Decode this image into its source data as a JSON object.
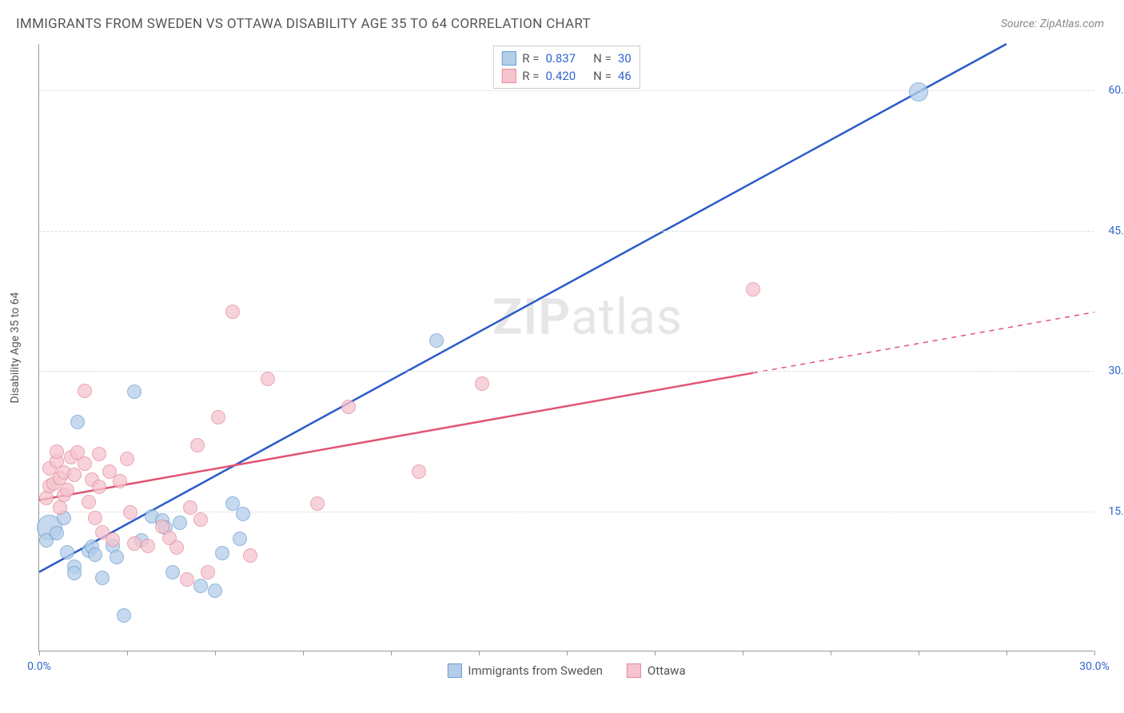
{
  "title": "IMMIGRANTS FROM SWEDEN VS OTTAWA DISABILITY AGE 35 TO 64 CORRELATION CHART",
  "source": "Source: ZipAtlas.com",
  "watermark": "ZIPatlas",
  "y_axis_title": "Disability Age 35 to 64",
  "chart": {
    "type": "scatter",
    "background_color": "#ffffff",
    "grid_color": "#dddddd",
    "axis_color": "#999999",
    "xlim": [
      0,
      30
    ],
    "ylim": [
      0,
      65
    ],
    "x_ticks": [
      0,
      2.5,
      5,
      7.5,
      10,
      12.5,
      15,
      17.5,
      20,
      22.5,
      25,
      27.5,
      30
    ],
    "x_tick_labels": {
      "0": "0.0%",
      "30": "30.0%"
    },
    "y_ticks": [
      15,
      30,
      45,
      60
    ],
    "y_tick_labels": {
      "15": "15.0%",
      "30": "30.0%",
      "45": "45.0%",
      "60": "60.0%"
    },
    "label_fontsize": 14,
    "label_color": "#3366cc",
    "title_fontsize": 17,
    "title_color": "#555555"
  },
  "series": [
    {
      "key": "sweden",
      "label": "Immigrants from Sweden",
      "fill": "#b3cdea",
      "stroke": "#6d9fd1",
      "line_color": "#2b5bc9",
      "line_width": 2.5,
      "line_dash": "none",
      "R_label": "R  =",
      "R": "0.837",
      "N_label": "N  =",
      "N": "30",
      "marker_radius": 9,
      "trend": {
        "x1": 0,
        "y1": 8.5,
        "x2": 27.5,
        "y2": 65
      },
      "points": [
        {
          "x": 0.3,
          "y": 13.2,
          "r": 16
        },
        {
          "x": 0.2,
          "y": 11.8
        },
        {
          "x": 0.5,
          "y": 12.6
        },
        {
          "x": 0.8,
          "y": 10.5
        },
        {
          "x": 1.0,
          "y": 9.0
        },
        {
          "x": 1.0,
          "y": 8.3
        },
        {
          "x": 1.4,
          "y": 10.7
        },
        {
          "x": 1.5,
          "y": 11.1
        },
        {
          "x": 0.7,
          "y": 14.2
        },
        {
          "x": 1.6,
          "y": 10.3
        },
        {
          "x": 1.8,
          "y": 7.8
        },
        {
          "x": 1.1,
          "y": 24.5
        },
        {
          "x": 2.1,
          "y": 11.2
        },
        {
          "x": 2.2,
          "y": 10.0
        },
        {
          "x": 2.4,
          "y": 3.8
        },
        {
          "x": 2.7,
          "y": 27.7
        },
        {
          "x": 2.9,
          "y": 11.8
        },
        {
          "x": 3.2,
          "y": 14.4
        },
        {
          "x": 3.5,
          "y": 13.9
        },
        {
          "x": 3.6,
          "y": 13.2
        },
        {
          "x": 3.8,
          "y": 8.4
        },
        {
          "x": 4.0,
          "y": 13.7
        },
        {
          "x": 4.6,
          "y": 6.9
        },
        {
          "x": 5.0,
          "y": 6.4
        },
        {
          "x": 5.2,
          "y": 10.4
        },
        {
          "x": 5.5,
          "y": 15.7
        },
        {
          "x": 5.8,
          "y": 14.6
        },
        {
          "x": 5.7,
          "y": 12.0
        },
        {
          "x": 11.3,
          "y": 33.2
        },
        {
          "x": 25.0,
          "y": 59.8,
          "r": 12
        }
      ]
    },
    {
      "key": "ottawa",
      "label": "Ottawa",
      "fill": "#f5c4ce",
      "stroke": "#e48a9c",
      "line_color": "#e15573",
      "line_width": 2.5,
      "line_dash": "none",
      "dash_extension": true,
      "R_label": "R  =",
      "R": "0.420",
      "N_label": "N  =",
      "N": "46",
      "marker_radius": 9,
      "trend": {
        "x1": 0,
        "y1": 16.2,
        "x2": 20.3,
        "y2": 29.8
      },
      "trend_ext": {
        "x1": 20.3,
        "y1": 29.8,
        "x2": 30,
        "y2": 36.3
      },
      "points": [
        {
          "x": 0.2,
          "y": 16.3
        },
        {
          "x": 0.3,
          "y": 17.6
        },
        {
          "x": 0.3,
          "y": 19.5
        },
        {
          "x": 0.4,
          "y": 17.9
        },
        {
          "x": 0.5,
          "y": 20.3
        },
        {
          "x": 0.5,
          "y": 21.3
        },
        {
          "x": 0.6,
          "y": 18.5
        },
        {
          "x": 0.6,
          "y": 15.3
        },
        {
          "x": 0.7,
          "y": 19.1
        },
        {
          "x": 0.7,
          "y": 16.7
        },
        {
          "x": 0.8,
          "y": 17.2
        },
        {
          "x": 0.9,
          "y": 20.7
        },
        {
          "x": 1.0,
          "y": 18.8
        },
        {
          "x": 1.1,
          "y": 21.2
        },
        {
          "x": 1.3,
          "y": 27.8
        },
        {
          "x": 1.3,
          "y": 20.0
        },
        {
          "x": 1.4,
          "y": 15.9
        },
        {
          "x": 1.5,
          "y": 18.3
        },
        {
          "x": 1.6,
          "y": 14.2
        },
        {
          "x": 1.7,
          "y": 21.0
        },
        {
          "x": 1.7,
          "y": 17.5
        },
        {
          "x": 1.8,
          "y": 12.7
        },
        {
          "x": 2.0,
          "y": 19.2
        },
        {
          "x": 2.1,
          "y": 11.9
        },
        {
          "x": 2.3,
          "y": 18.1
        },
        {
          "x": 2.5,
          "y": 20.5
        },
        {
          "x": 2.6,
          "y": 14.8
        },
        {
          "x": 2.7,
          "y": 11.5
        },
        {
          "x": 3.1,
          "y": 11.2
        },
        {
          "x": 3.5,
          "y": 13.3
        },
        {
          "x": 3.7,
          "y": 12.1
        },
        {
          "x": 3.9,
          "y": 11.0
        },
        {
          "x": 4.2,
          "y": 7.6
        },
        {
          "x": 4.3,
          "y": 15.3
        },
        {
          "x": 4.5,
          "y": 22.0
        },
        {
          "x": 4.6,
          "y": 14.0
        },
        {
          "x": 4.8,
          "y": 8.4
        },
        {
          "x": 5.1,
          "y": 25.0
        },
        {
          "x": 5.5,
          "y": 36.3
        },
        {
          "x": 6.0,
          "y": 10.2
        },
        {
          "x": 6.5,
          "y": 29.1
        },
        {
          "x": 7.9,
          "y": 15.7
        },
        {
          "x": 8.8,
          "y": 26.1
        },
        {
          "x": 10.8,
          "y": 19.2
        },
        {
          "x": 12.6,
          "y": 28.6
        },
        {
          "x": 20.3,
          "y": 38.7
        }
      ]
    }
  ],
  "legend_bottom": [
    {
      "swatch_fill": "#b3cdea",
      "swatch_stroke": "#6d9fd1",
      "label": "Immigrants from Sweden"
    },
    {
      "swatch_fill": "#f5c4ce",
      "swatch_stroke": "#e48a9c",
      "label": "Ottawa"
    }
  ]
}
